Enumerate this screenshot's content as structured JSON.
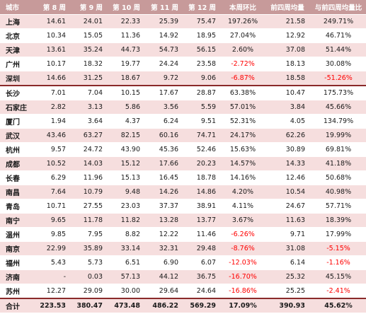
{
  "table": {
    "headers": [
      "城市",
      "第 8 周",
      "第 9 周",
      "第 10 周",
      "第 11 周",
      "第 12 周",
      "本周环比",
      "前四周均量",
      "与前四周均量比"
    ],
    "rows": [
      [
        "上海",
        "14.61",
        "24.01",
        "22.33",
        "25.39",
        "75.47",
        "197.26%",
        "21.58",
        "249.71%"
      ],
      [
        "北京",
        "10.34",
        "15.05",
        "11.36",
        "14.92",
        "18.95",
        "27.04%",
        "12.92",
        "46.71%"
      ],
      [
        "天津",
        "13.61",
        "35.24",
        "44.73",
        "54.73",
        "56.15",
        "2.60%",
        "37.08",
        "51.44%"
      ],
      [
        "广州",
        "10.17",
        "18.32",
        "19.77",
        "24.24",
        "23.58",
        "-2.72%",
        "18.13",
        "30.08%"
      ],
      [
        "深圳",
        "14.66",
        "31.25",
        "18.67",
        "9.72",
        "9.06",
        "-6.87%",
        "18.58",
        "-51.26%"
      ],
      [
        "长沙",
        "7.01",
        "7.04",
        "10.15",
        "17.67",
        "28.87",
        "63.38%",
        "10.47",
        "175.73%"
      ],
      [
        "石家庄",
        "2.82",
        "3.13",
        "5.86",
        "3.56",
        "5.59",
        "57.01%",
        "3.84",
        "45.66%"
      ],
      [
        "厦门",
        "1.94",
        "3.64",
        "4.37",
        "6.24",
        "9.51",
        "52.31%",
        "4.05",
        "134.79%"
      ],
      [
        "武汉",
        "43.46",
        "63.27",
        "82.15",
        "60.16",
        "74.71",
        "24.17%",
        "62.26",
        "19.99%"
      ],
      [
        "杭州",
        "9.57",
        "24.72",
        "43.90",
        "45.36",
        "52.46",
        "15.63%",
        "30.89",
        "69.81%"
      ],
      [
        "成都",
        "10.52",
        "14.03",
        "15.12",
        "17.66",
        "20.23",
        "14.57%",
        "14.33",
        "41.18%"
      ],
      [
        "长春",
        "6.29",
        "11.96",
        "15.13",
        "16.45",
        "18.78",
        "14.16%",
        "12.46",
        "50.68%"
      ],
      [
        "南昌",
        "7.64",
        "10.79",
        "9.48",
        "14.26",
        "14.86",
        "4.20%",
        "10.54",
        "40.98%"
      ],
      [
        "青岛",
        "10.71",
        "27.55",
        "23.03",
        "37.37",
        "38.91",
        "4.11%",
        "24.67",
        "57.71%"
      ],
      [
        "南宁",
        "9.65",
        "11.78",
        "11.82",
        "13.28",
        "13.77",
        "3.67%",
        "11.63",
        "18.39%"
      ],
      [
        "温州",
        "9.85",
        "7.95",
        "8.82",
        "12.22",
        "11.46",
        "-6.26%",
        "9.71",
        "17.99%"
      ],
      [
        "南京",
        "22.99",
        "35.89",
        "33.14",
        "32.31",
        "29.48",
        "-8.76%",
        "31.08",
        "-5.15%"
      ],
      [
        "福州",
        "5.43",
        "5.73",
        "6.51",
        "6.90",
        "6.07",
        "-12.03%",
        "6.14",
        "-1.16%"
      ],
      [
        "济南",
        "-",
        "0.03",
        "57.13",
        "44.12",
        "36.75",
        "-16.70%",
        "25.32",
        "45.15%"
      ],
      [
        "苏州",
        "12.27",
        "29.09",
        "30.00",
        "29.64",
        "24.64",
        "-16.86%",
        "25.25",
        "-2.41%"
      ]
    ],
    "total": [
      "合计",
      "223.53",
      "380.47",
      "473.48",
      "486.22",
      "569.29",
      "17.09%",
      "390.93",
      "45.62%"
    ]
  },
  "colors": {
    "header_bg": "#c79a9a",
    "stripe": "#f6dede",
    "negative": "#ff0000",
    "divider": "#8a2a2a"
  }
}
